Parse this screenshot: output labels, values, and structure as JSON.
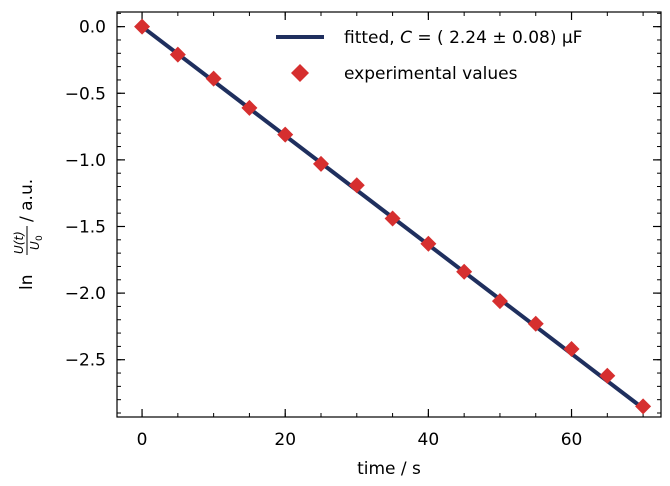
{
  "chart_data": {
    "type": "scatter",
    "xlabel": "time / s",
    "ylabel_parts": {
      "prefix": "ln",
      "numerator": "U(t)",
      "denominator": "U",
      "denominator_sub": "0",
      "suffix": "/ a.u."
    },
    "xlim": [
      -3.5,
      72.5
    ],
    "ylim": [
      -2.93,
      0.11
    ],
    "x_ticks": [
      0,
      20,
      40,
      60
    ],
    "x_tick_labels": [
      "0",
      "20",
      "40",
      "60"
    ],
    "y_ticks": [
      0.0,
      -0.5,
      -1.0,
      -1.5,
      -2.0,
      -2.5
    ],
    "y_tick_labels": [
      "0.0",
      "−0.5",
      "−1.0",
      "−1.5",
      "−2.0",
      "−2.5"
    ],
    "x_minor_step": 5,
    "y_minor_step": 0.1,
    "legend_position": "top-right",
    "series": [
      {
        "name": "fitted",
        "legend_label": {
          "pre": "fitted, ",
          "var": "C",
          "post": " = ( 2.24 ± 0.08) µF"
        },
        "kind": "line",
        "color": "#1f2f5e",
        "x": [
          0,
          70
        ],
        "y": [
          0.0,
          -2.865
        ]
      },
      {
        "name": "experimental values",
        "legend_label": {
          "pre": "experimental values",
          "var": "",
          "post": ""
        },
        "kind": "marker",
        "marker": "diamond",
        "color": "#d62f2f",
        "x": [
          0,
          5,
          10,
          15,
          20,
          25,
          30,
          35,
          40,
          45,
          50,
          55,
          60,
          65,
          70
        ],
        "y": [
          0.0,
          -0.21,
          -0.39,
          -0.61,
          -0.81,
          -1.03,
          -1.19,
          -1.44,
          -1.63,
          -1.84,
          -2.06,
          -2.23,
          -2.42,
          -2.62,
          -2.85
        ]
      }
    ]
  }
}
